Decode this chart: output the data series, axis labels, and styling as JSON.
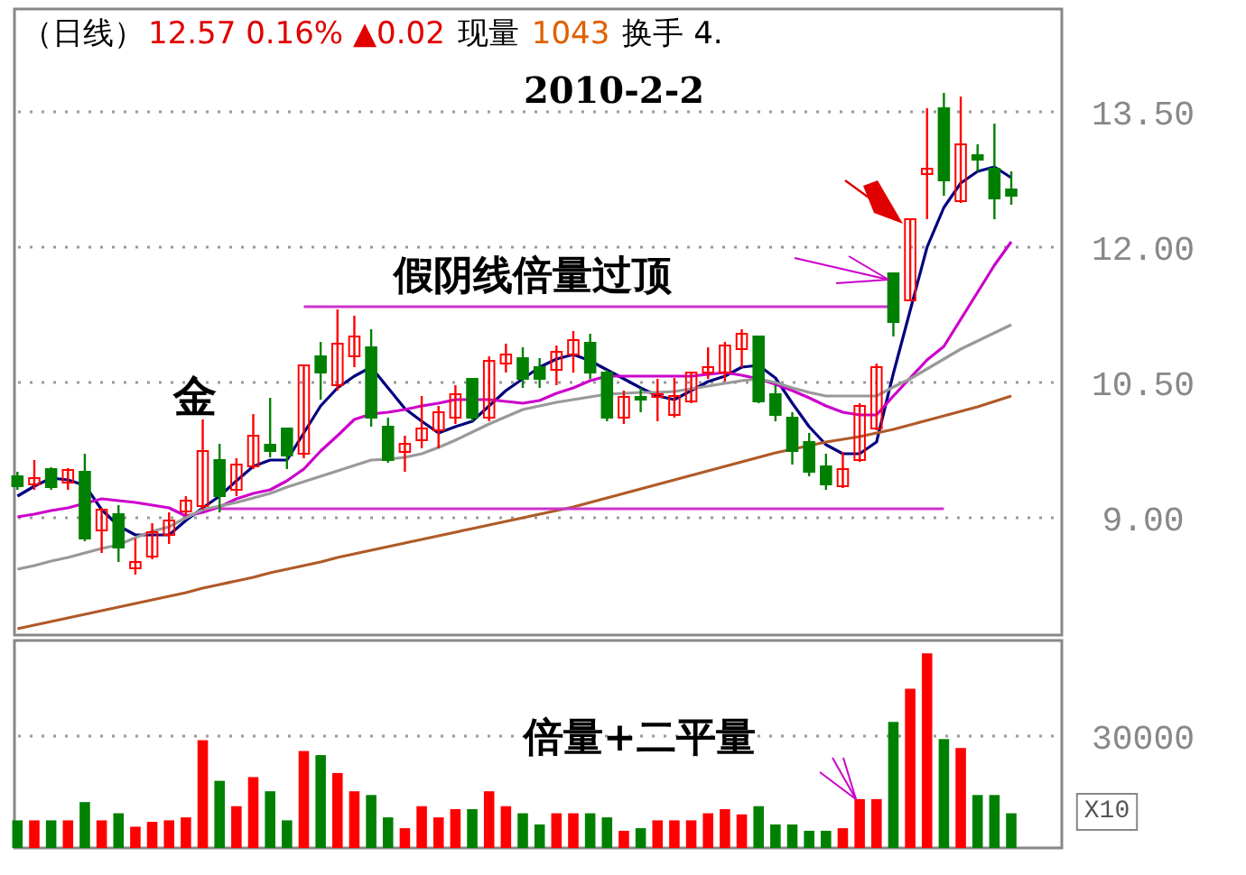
{
  "chart_data": [
    {
      "type": "candlestick",
      "title": "（日线）",
      "annotations": [
        "12.57 0.16% ▲0.02",
        "现量",
        "1043",
        "换手 4.",
        "2010-2-2",
        "假阴线倍量过顶",
        "金"
      ],
      "categories": [
        null,
        null,
        null,
        null,
        null,
        null,
        null,
        null,
        null,
        null,
        null,
        null,
        null,
        null,
        null,
        null,
        null,
        null,
        null,
        null,
        null,
        null,
        null,
        null,
        null,
        null,
        null,
        null,
        null,
        null,
        null,
        null,
        null,
        null,
        null,
        null,
        null,
        null,
        null,
        null,
        null,
        null,
        null,
        null,
        null,
        null,
        null,
        null,
        null,
        null,
        null,
        null,
        null,
        null,
        null,
        null,
        null,
        null,
        null,
        null
      ],
      "ohlc": [
        [
          9.46,
          9.51,
          9.31,
          9.35
        ],
        [
          9.37,
          9.64,
          9.31,
          9.44
        ],
        [
          9.54,
          9.56,
          9.31,
          9.34
        ],
        [
          9.39,
          9.55,
          9.31,
          9.53
        ],
        [
          9.51,
          9.71,
          8.74,
          8.77
        ],
        [
          8.86,
          9.11,
          8.61,
          9.09
        ],
        [
          9.04,
          9.14,
          8.51,
          8.67
        ],
        [
          8.44,
          8.77,
          8.37,
          8.51
        ],
        [
          8.57,
          8.94,
          8.54,
          8.84
        ],
        [
          8.81,
          9.06,
          8.71,
          8.97
        ],
        [
          9.07,
          9.24,
          9.02,
          9.19
        ],
        [
          9.13,
          10.09,
          9.09,
          9.74
        ],
        [
          9.64,
          9.82,
          9.06,
          9.24
        ],
        [
          9.31,
          9.66,
          9.24,
          9.59
        ],
        [
          9.57,
          10.15,
          9.54,
          9.91
        ],
        [
          9.81,
          10.33,
          9.67,
          9.74
        ],
        [
          9.99,
          10.0,
          9.54,
          9.69
        ],
        [
          9.71,
          10.7,
          9.66,
          10.69
        ],
        [
          10.79,
          10.95,
          10.31,
          10.61
        ],
        [
          10.47,
          11.31,
          10.41,
          10.93
        ],
        [
          10.79,
          11.24,
          10.67,
          11.01
        ],
        [
          10.89,
          11.09,
          10.01,
          10.11
        ],
        [
          10.01,
          10.11,
          9.61,
          9.64
        ],
        [
          9.73,
          9.91,
          9.51,
          9.82
        ],
        [
          9.86,
          10.35,
          9.77,
          9.99
        ],
        [
          9.97,
          10.24,
          9.77,
          10.17
        ],
        [
          10.11,
          10.47,
          10.04,
          10.37
        ],
        [
          10.54,
          10.55,
          10.07,
          10.11
        ],
        [
          10.11,
          10.79,
          10.07,
          10.74
        ],
        [
          10.71,
          10.93,
          10.61,
          10.81
        ],
        [
          10.77,
          10.89,
          10.44,
          10.54
        ],
        [
          10.67,
          10.77,
          10.44,
          10.54
        ],
        [
          10.64,
          10.91,
          10.47,
          10.84
        ],
        [
          10.81,
          11.07,
          10.61,
          10.97
        ],
        [
          10.94,
          11.04,
          10.54,
          10.61
        ],
        [
          10.61,
          10.64,
          10.07,
          10.11
        ],
        [
          10.11,
          10.41,
          10.04,
          10.34
        ],
        [
          10.34,
          10.44,
          10.17,
          10.31
        ],
        [
          10.34,
          10.54,
          10.07,
          10.37
        ],
        [
          10.14,
          10.55,
          10.11,
          10.35
        ],
        [
          10.29,
          10.62,
          10.27,
          10.61
        ],
        [
          10.61,
          10.89,
          10.54,
          10.67
        ],
        [
          10.61,
          10.95,
          10.51,
          10.91
        ],
        [
          10.87,
          11.09,
          10.67,
          11.04
        ],
        [
          11.01,
          11.02,
          10.27,
          10.29
        ],
        [
          10.37,
          10.47,
          10.07,
          10.14
        ],
        [
          10.11,
          10.17,
          9.59,
          9.74
        ],
        [
          9.84,
          9.94,
          9.46,
          9.51
        ],
        [
          9.57,
          9.71,
          9.31,
          9.37
        ],
        [
          9.35,
          9.73,
          9.33,
          9.54
        ],
        [
          9.64,
          10.27,
          9.62,
          10.24
        ],
        [
          9.99,
          10.71,
          9.97,
          10.67
        ],
        [
          11.71,
          11.71,
          11.01,
          11.17
        ],
        [
          11.41,
          12.31,
          11.41,
          12.31
        ],
        [
          12.81,
          13.54,
          12.31,
          12.87
        ],
        [
          13.54,
          13.71,
          12.57,
          12.74
        ],
        [
          12.51,
          13.67,
          12.49,
          13.14
        ],
        [
          13.02,
          13.14,
          12.84,
          12.97
        ],
        [
          12.87,
          13.37,
          12.31,
          12.54
        ],
        [
          12.64,
          12.84,
          12.47,
          12.57
        ]
      ],
      "series": [
        {
          "type": "line",
          "color": "#000080",
          "values": [
            9.24,
            9.35,
            9.44,
            9.42,
            9.36,
            9.09,
            8.91,
            8.81,
            8.81,
            8.81,
            8.97,
            9.11,
            9.24,
            9.41,
            9.57,
            9.64,
            9.64,
            9.94,
            10.24,
            10.44,
            10.57,
            10.67,
            10.44,
            10.21,
            10.07,
            9.94,
            10.01,
            10.07,
            10.24,
            10.41,
            10.54,
            10.67,
            10.76,
            10.81,
            10.74,
            10.64,
            10.54,
            10.44,
            10.35,
            10.31,
            10.41,
            10.51,
            10.57,
            10.67,
            10.69,
            10.55,
            10.27,
            10.01,
            9.81,
            9.71,
            9.71,
            9.84,
            10.6,
            11.3,
            12.0,
            12.44,
            12.71,
            12.84,
            12.89,
            12.77
          ]
        },
        {
          "type": "line",
          "color": "#cc00cc",
          "values": [
            9.01,
            9.04,
            9.08,
            9.11,
            9.16,
            9.21,
            9.19,
            9.17,
            9.14,
            9.11,
            9.02,
            9.06,
            9.12,
            9.21,
            9.27,
            9.31,
            9.41,
            9.54,
            9.74,
            9.91,
            10.09,
            10.15,
            10.17,
            10.2,
            10.24,
            10.27,
            10.31,
            10.31,
            10.31,
            10.29,
            10.27,
            10.3,
            10.38,
            10.44,
            10.52,
            10.57,
            10.57,
            10.57,
            10.57,
            10.57,
            10.57,
            10.59,
            10.61,
            10.58,
            10.54,
            10.48,
            10.41,
            10.33,
            10.24,
            10.17,
            10.14,
            10.14,
            10.35,
            10.55,
            10.75,
            10.9,
            11.2,
            11.5,
            11.8,
            12.06
          ]
        },
        {
          "type": "line",
          "color": "#999999",
          "values": [
            8.43,
            8.47,
            8.52,
            8.56,
            8.61,
            8.66,
            8.7,
            8.78,
            8.85,
            8.9,
            9.0,
            9.09,
            9.13,
            9.17,
            9.22,
            9.27,
            9.34,
            9.4,
            9.46,
            9.52,
            9.58,
            9.64,
            9.65,
            9.67,
            9.71,
            9.78,
            9.86,
            9.95,
            10.04,
            10.12,
            10.2,
            10.24,
            10.28,
            10.31,
            10.34,
            10.37,
            10.38,
            10.39,
            10.39,
            10.4,
            10.43,
            10.46,
            10.49,
            10.52,
            10.54,
            10.5,
            10.44,
            10.39,
            10.35,
            10.35,
            10.35,
            10.35,
            10.45,
            10.54,
            10.65,
            10.76,
            10.87,
            10.96,
            11.05,
            11.14
          ]
        },
        {
          "type": "line",
          "color": "#b05a28",
          "values": [
            7.77,
            7.81,
            7.85,
            7.89,
            7.93,
            7.97,
            8.01,
            8.05,
            8.09,
            8.13,
            8.17,
            8.22,
            8.26,
            8.3,
            8.34,
            8.39,
            8.43,
            8.47,
            8.51,
            8.56,
            8.6,
            8.64,
            8.68,
            8.72,
            8.76,
            8.8,
            8.84,
            8.88,
            8.92,
            8.96,
            9.0,
            9.04,
            9.08,
            9.12,
            9.17,
            9.22,
            9.27,
            9.32,
            9.37,
            9.42,
            9.47,
            9.52,
            9.57,
            9.62,
            9.67,
            9.72,
            9.76,
            9.8,
            9.84,
            9.87,
            9.9,
            9.94,
            9.98,
            10.03,
            10.08,
            10.13,
            10.18,
            10.23,
            10.29,
            10.35
          ]
        },
        {
          "type": "line",
          "color": "#cc33cc",
          "values": [
            null,
            null,
            null,
            null,
            null,
            null,
            null,
            null,
            null,
            null,
            null,
            null,
            null,
            null,
            null,
            null,
            null,
            11.34,
            11.34,
            11.34,
            11.34,
            11.34,
            11.34,
            11.34,
            11.34,
            11.34,
            11.34,
            11.34,
            11.34,
            11.34,
            11.34,
            11.34,
            11.34,
            11.34,
            11.34,
            11.34,
            11.34,
            11.34,
            11.34,
            11.34,
            11.34,
            11.34,
            11.34,
            11.34,
            11.34,
            11.34,
            11.34,
            11.34,
            11.34,
            11.34,
            11.34,
            11.34,
            11.34,
            null,
            null,
            null,
            null,
            null,
            null,
            null
          ]
        },
        {
          "type": "line",
          "color": "#cc33cc",
          "values": [
            null,
            null,
            null,
            null,
            null,
            null,
            null,
            null,
            null,
            null,
            null,
            null,
            9.1,
            9.1,
            9.1,
            9.1,
            9.1,
            9.1,
            9.1,
            9.1,
            9.1,
            9.1,
            9.1,
            9.1,
            9.1,
            9.1,
            9.1,
            9.1,
            9.1,
            9.1,
            9.1,
            9.1,
            9.1,
            9.1,
            9.1,
            9.1,
            9.1,
            9.1,
            9.1,
            9.1,
            9.1,
            9.1,
            9.1,
            9.1,
            9.1,
            9.1,
            9.1,
            9.1,
            9.1,
            9.1,
            9.1,
            9.1,
            9.1,
            9.1,
            9.1,
            9.1,
            null,
            null,
            null,
            null
          ]
        }
      ],
      "ylim": [
        7.7,
        14.64
      ],
      "yticks": [
        {
          "value": 13.5,
          "label": "13.50"
        },
        {
          "value": 12,
          "label": "12.00"
        },
        {
          "value": 10.5,
          "label": "10.50"
        },
        {
          "value": 9,
          "label": "9.00"
        }
      ],
      "grid": "y",
      "tick_labels": "y"
    },
    {
      "type": "bar",
      "annotations": [
        "倍量+二平量",
        "X10"
      ],
      "categories": [
        null,
        null,
        null,
        null,
        null,
        null,
        null,
        null,
        null,
        null,
        null,
        null,
        null,
        null,
        null,
        null,
        null,
        null,
        null,
        null,
        null,
        null,
        null,
        null,
        null,
        null,
        null,
        null,
        null,
        null,
        null,
        null,
        null,
        null,
        null,
        null,
        null,
        null,
        null,
        null,
        null,
        null,
        null,
        null,
        null,
        null,
        null,
        null,
        null,
        null,
        null,
        null,
        null,
        null,
        null,
        null,
        null,
        null,
        null,
        null
      ],
      "values": [
        7400,
        7400,
        7400,
        7400,
        12300,
        7400,
        9300,
        5700,
        7000,
        7400,
        8200,
        28900,
        18000,
        11200,
        19000,
        15200,
        7400,
        26000,
        24900,
        20100,
        15200,
        14200,
        8200,
        5300,
        11200,
        8200,
        10400,
        10400,
        15200,
        11200,
        9300,
        6300,
        9300,
        9300,
        9300,
        8200,
        4600,
        5300,
        7400,
        7400,
        7400,
        9300,
        10400,
        9000,
        11200,
        6300,
        6300,
        4600,
        4600,
        5300,
        13100,
        13100,
        33800,
        42700,
        52200,
        29200,
        26800,
        14200,
        14200,
        9300
      ],
      "colors": [
        "#008000",
        "#ff0000",
        "#008000",
        "#ff0000",
        "#008000",
        "#ff0000",
        "#008000",
        "#ff0000",
        "#ff0000",
        "#ff0000",
        "#ff0000",
        "#ff0000",
        "#008000",
        "#ff0000",
        "#ff0000",
        "#008000",
        "#008000",
        "#ff0000",
        "#008000",
        "#ff0000",
        "#ff0000",
        "#008000",
        "#008000",
        "#ff0000",
        "#ff0000",
        "#ff0000",
        "#ff0000",
        "#008000",
        "#ff0000",
        "#ff0000",
        "#008000",
        "#008000",
        "#ff0000",
        "#ff0000",
        "#008000",
        "#008000",
        "#ff0000",
        "#008000",
        "#ff0000",
        "#ff0000",
        "#ff0000",
        "#ff0000",
        "#ff0000",
        "#ff0000",
        "#008000",
        "#008000",
        "#008000",
        "#008000",
        "#008000",
        "#ff0000",
        "#ff0000",
        "#ff0000",
        "#008000",
        "#ff0000",
        "#ff0000",
        "#008000",
        "#ff0000",
        "#008000",
        "#008000",
        "#008000"
      ],
      "ylim": [
        0,
        55650
      ],
      "yticks": [
        30000
      ],
      "grid": "y",
      "tick_labels": "y"
    }
  ]
}
